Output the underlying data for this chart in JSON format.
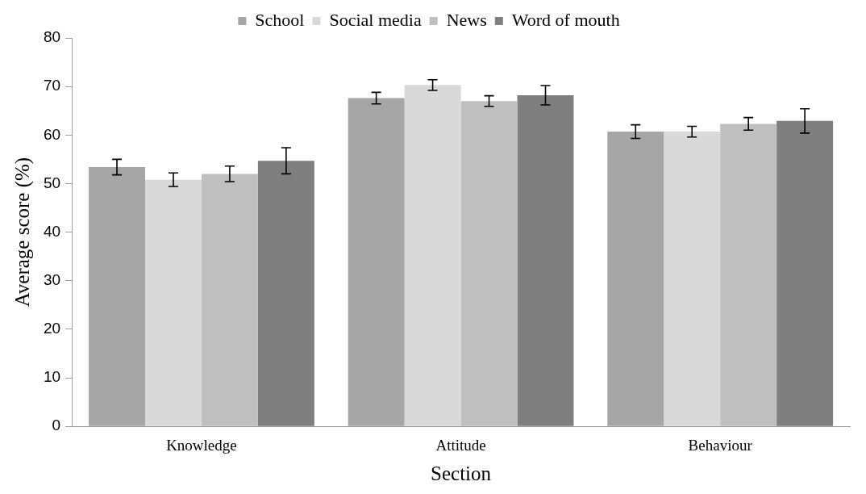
{
  "chart_data": {
    "type": "bar",
    "xlabel": "Section",
    "ylabel": "Average score (%)",
    "categories": [
      "Knowledge",
      "Attitude",
      "Behaviour"
    ],
    "series": [
      {
        "name": "School",
        "color": "#a6a6a6",
        "values": [
          53.4,
          67.6,
          60.7
        ],
        "errors": [
          1.6,
          1.2,
          1.4
        ]
      },
      {
        "name": "Social media",
        "color": "#d9d9d9",
        "values": [
          50.8,
          70.3,
          60.7
        ],
        "errors": [
          1.4,
          1.1,
          1.1
        ]
      },
      {
        "name": "News",
        "color": "#bfbfbf",
        "values": [
          52.0,
          67.0,
          62.3
        ],
        "errors": [
          1.6,
          1.1,
          1.3
        ]
      },
      {
        "name": "Word of mouth",
        "color": "#7f7f7f",
        "values": [
          54.7,
          68.2,
          62.9
        ],
        "errors": [
          2.7,
          2.0,
          2.5
        ]
      }
    ],
    "ylim": [
      0,
      80
    ],
    "yticks": [
      0,
      10,
      20,
      30,
      40,
      50,
      60,
      70,
      80
    ],
    "grid": false,
    "legend": "top"
  }
}
